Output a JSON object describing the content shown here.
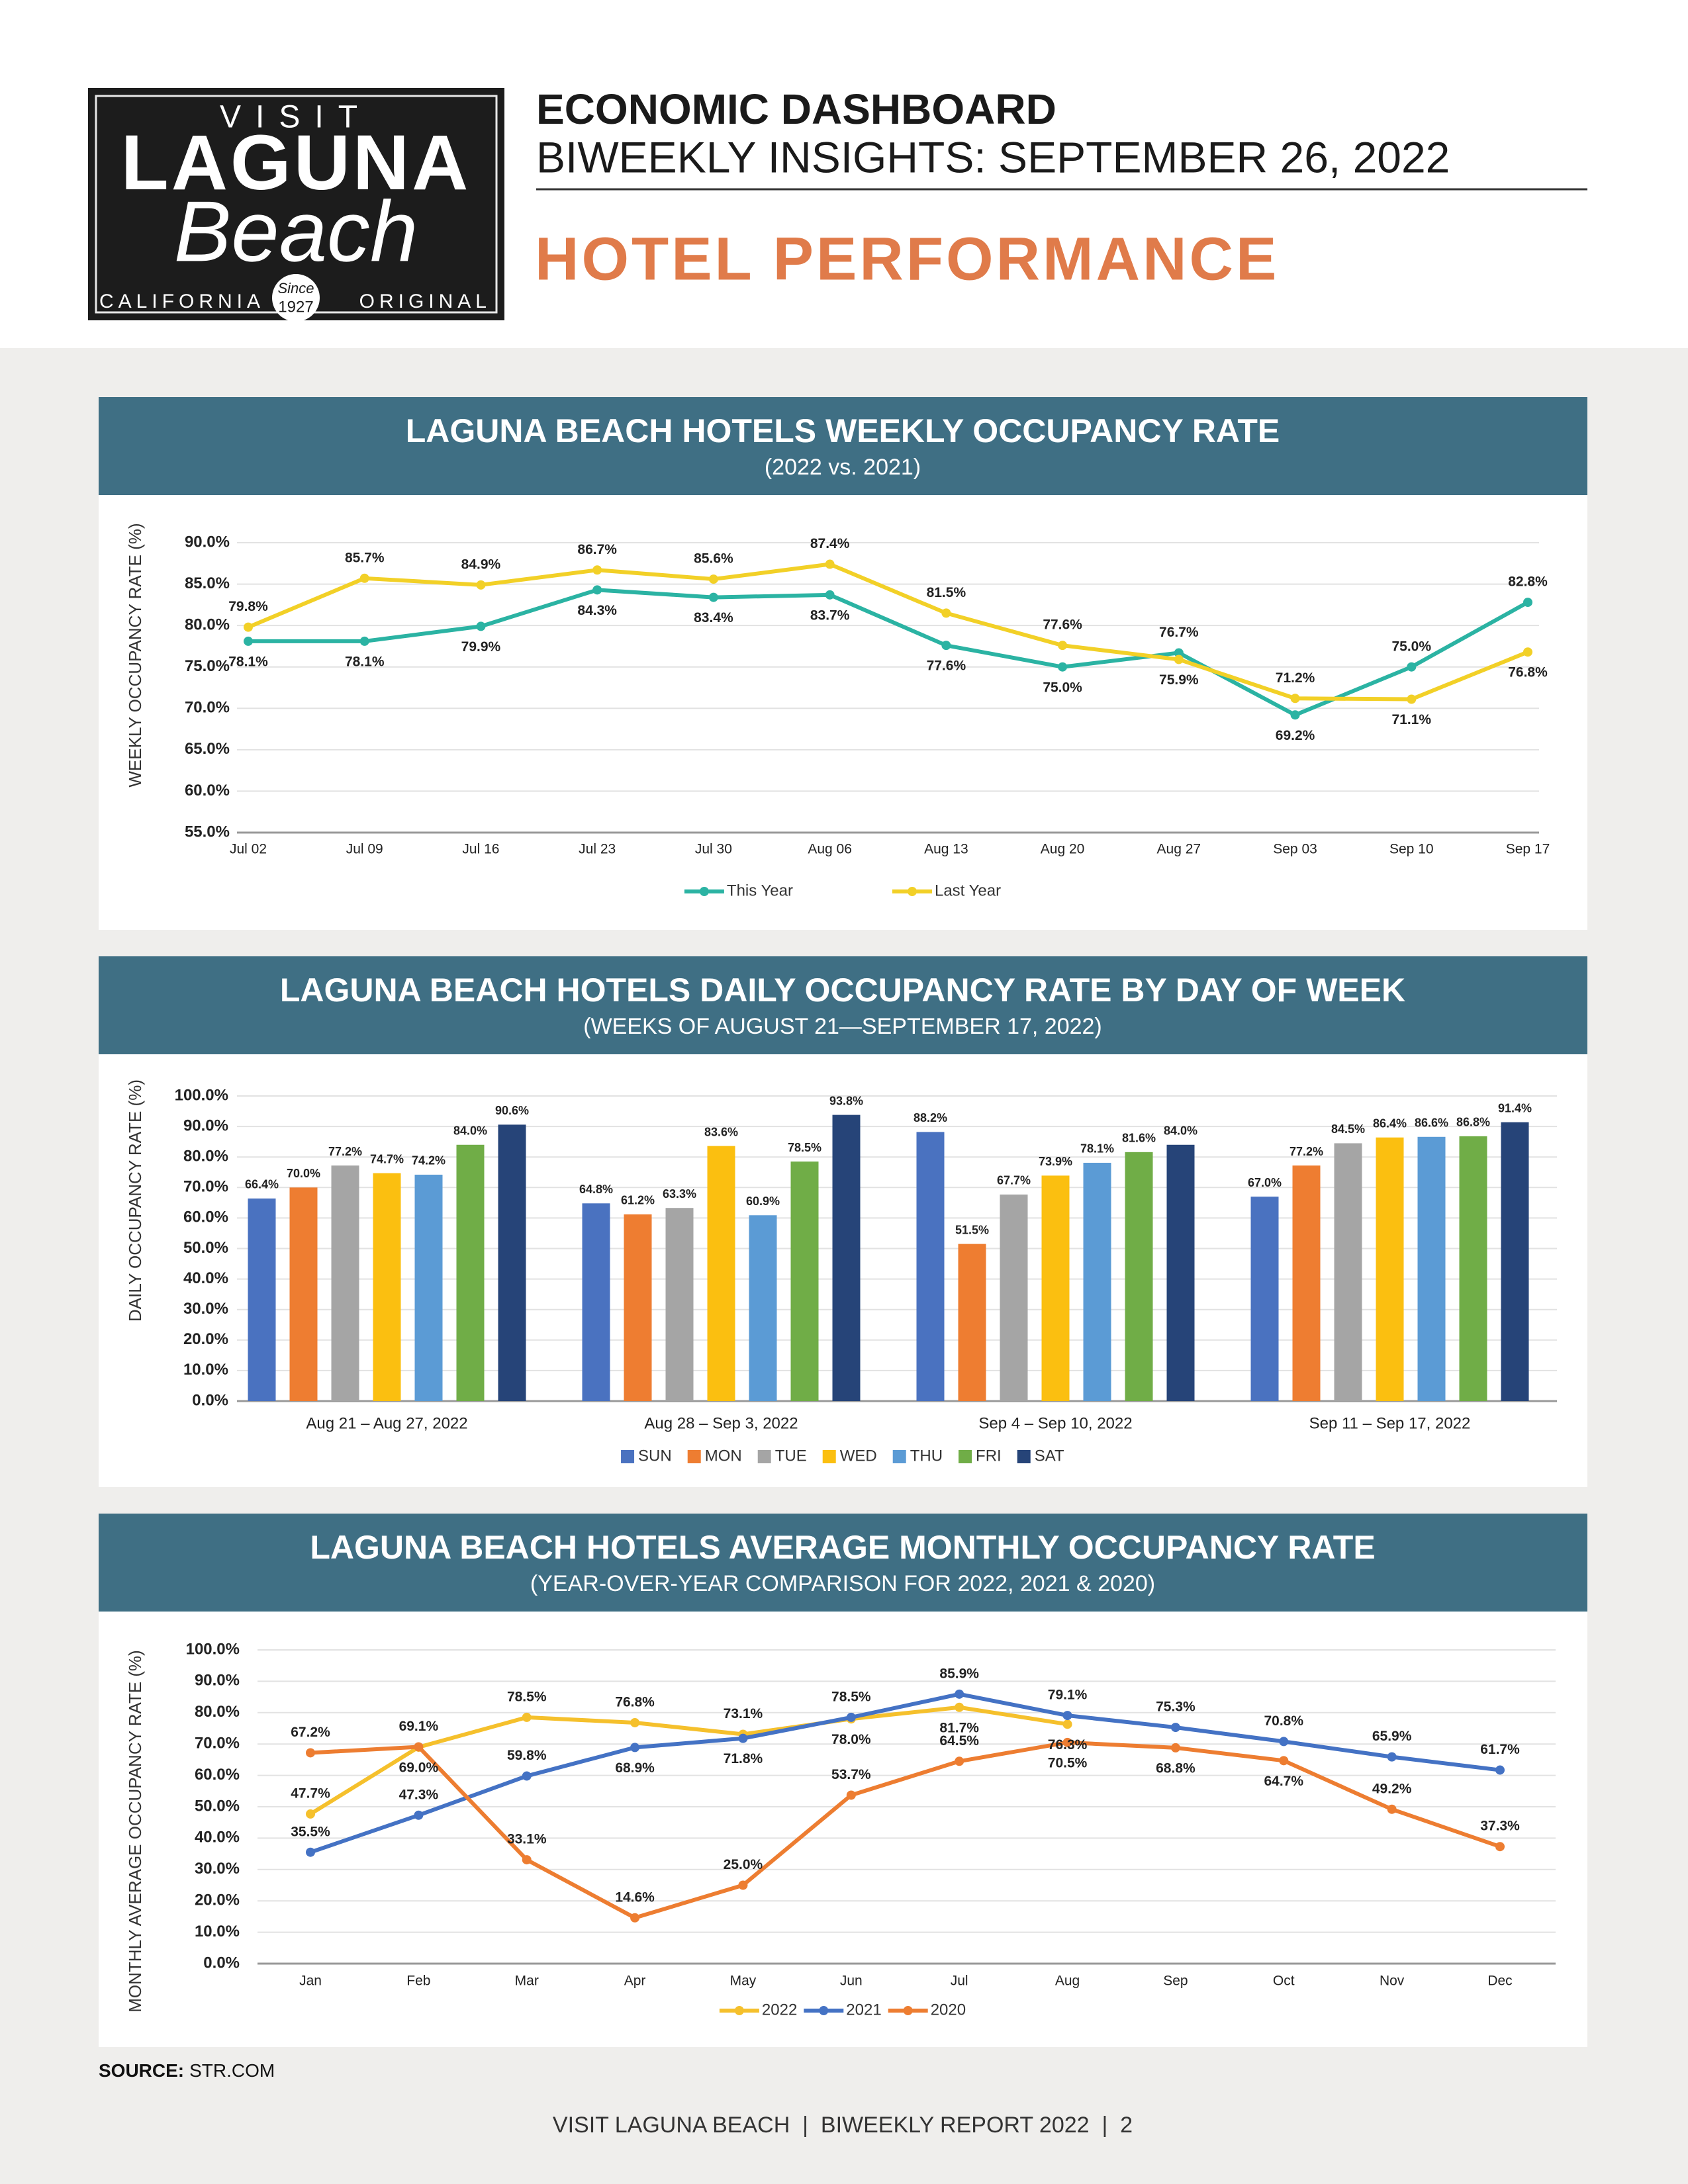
{
  "header": {
    "logo": {
      "visit": "VISIT",
      "laguna": "LAGUNA",
      "beach": "Beach",
      "california": "CALIFORNIA",
      "original": "ORIGINAL",
      "since": "Since",
      "year": "1927"
    },
    "title": "ECONOMIC DASHBOARD",
    "subtitle": "BIWEEKLY INSIGHTS: SEPTEMBER 26, 2022",
    "section": "HOTEL PERFORMANCE"
  },
  "chart_data": [
    {
      "type": "line",
      "title": "LAGUNA BEACH HOTELS WEEKLY OCCUPANCY RATE",
      "subtitle": "(2022 vs. 2021)",
      "y_label": "WEEKLY OCCUPANCY RATE (%)",
      "categories": [
        "Jul 02",
        "Jul 09",
        "Jul 16",
        "Jul 23",
        "Jul 30",
        "Aug 06",
        "Aug 13",
        "Aug 20",
        "Aug 27",
        "Sep 03",
        "Sep 10",
        "Sep 17"
      ],
      "series": [
        {
          "name": "This Year",
          "color": "#2bb3a3",
          "values": [
            78.1,
            78.1,
            79.9,
            84.3,
            83.4,
            83.7,
            77.6,
            75.0,
            76.7,
            69.2,
            75.0,
            82.8
          ],
          "value_labels": [
            "78.1%",
            "78.1%",
            "79.9%",
            "84.3%",
            "83.4%",
            "83.7%",
            "77.6%",
            "75.0%",
            "76.7%",
            "69.2%",
            "75.0%",
            "82.8%"
          ]
        },
        {
          "name": "Last Year",
          "color": "#f2d027",
          "values": [
            79.8,
            85.7,
            84.9,
            86.7,
            85.6,
            87.4,
            81.5,
            77.6,
            75.9,
            71.2,
            71.1,
            76.8
          ],
          "value_labels": [
            "79.8%",
            "85.7%",
            "84.9%",
            "86.7%",
            "85.6%",
            "87.4%",
            "81.5%",
            "77.6%",
            "75.9%",
            "71.2%",
            "71.1%",
            "76.8%"
          ]
        }
      ],
      "ylim": [
        55,
        90
      ],
      "yticks": [
        {
          "value": 55,
          "label": "55.0%"
        },
        {
          "value": 60,
          "label": "60.0%"
        },
        {
          "value": 65,
          "label": "65.0%"
        },
        {
          "value": 70,
          "label": "70.0%"
        },
        {
          "value": 75,
          "label": "75.0%"
        },
        {
          "value": 80,
          "label": "80.0%"
        },
        {
          "value": 85,
          "label": "85.0%"
        },
        {
          "value": 90,
          "label": "90.0%"
        }
      ],
      "grid": true,
      "legend": "bottom"
    },
    {
      "type": "bar",
      "title": "LAGUNA BEACH HOTELS DAILY OCCUPANCY RATE BY DAY OF WEEK",
      "subtitle": "(WEEKS OF AUGUST 21—SEPTEMBER 17, 2022)",
      "y_label": "DAILY OCCUPANCY RATE (%)",
      "categories": [
        "Aug 21 – Aug 27, 2022",
        "Aug 28 – Sep 3, 2022",
        "Sep 4 – Sep 10, 2022",
        "Sep 11 – Sep 17, 2022"
      ],
      "series": [
        {
          "name": "SUN",
          "color": "#4a72c0",
          "values": [
            66.4,
            64.8,
            88.2,
            67.0
          ],
          "value_labels": [
            "66.4%",
            "64.8%",
            "88.2%",
            "67.0%"
          ]
        },
        {
          "name": "MON",
          "color": "#ee7d31",
          "values": [
            70.0,
            61.2,
            51.5,
            77.2
          ],
          "value_labels": [
            "70.0%",
            "61.2%",
            "51.5%",
            "77.2%"
          ]
        },
        {
          "name": "TUE",
          "color": "#a5a5a5",
          "values": [
            77.2,
            63.3,
            67.7,
            84.5
          ],
          "value_labels": [
            "77.2%",
            "63.3%",
            "67.7%",
            "84.5%"
          ]
        },
        {
          "name": "WED",
          "color": "#fbbf10",
          "values": [
            74.7,
            83.6,
            73.9,
            86.4
          ],
          "value_labels": [
            "74.7%",
            "83.6%",
            "73.9%",
            "86.4%"
          ]
        },
        {
          "name": "THU",
          "color": "#5b9bd5",
          "values": [
            74.2,
            60.9,
            78.1,
            86.6
          ],
          "value_labels": [
            "74.2%",
            "60.9%",
            "78.1%",
            "86.6%"
          ]
        },
        {
          "name": "FRI",
          "color": "#70ad47",
          "values": [
            84.0,
            78.5,
            81.6,
            86.8
          ],
          "value_labels": [
            "84.0%",
            "78.5%",
            "81.6%",
            "86.8%"
          ]
        },
        {
          "name": "SAT",
          "color": "#264478",
          "values": [
            90.6,
            93.8,
            84.0,
            91.4
          ],
          "value_labels": [
            "90.6%",
            "93.8%",
            "84.0%",
            "91.4%"
          ]
        }
      ],
      "ylim": [
        0,
        100
      ],
      "yticks": [
        {
          "value": 0,
          "label": "0.0%"
        },
        {
          "value": 10,
          "label": "10.0%"
        },
        {
          "value": 20,
          "label": "20.0%"
        },
        {
          "value": 30,
          "label": "30.0%"
        },
        {
          "value": 40,
          "label": "40.0%"
        },
        {
          "value": 50,
          "label": "50.0%"
        },
        {
          "value": 60,
          "label": "60.0%"
        },
        {
          "value": 70,
          "label": "70.0%"
        },
        {
          "value": 80,
          "label": "80.0%"
        },
        {
          "value": 90,
          "label": "90.0%"
        },
        {
          "value": 100,
          "label": "100.0%"
        }
      ],
      "grid": true,
      "legend": "bottom"
    },
    {
      "type": "line",
      "title": "LAGUNA BEACH HOTELS AVERAGE MONTHLY OCCUPANCY RATE",
      "subtitle": "(YEAR-OVER-YEAR COMPARISON FOR 2022, 2021 & 2020)",
      "y_label": "MONTHLY AVERAGE OCCUPANCY RATE (%)",
      "categories": [
        "Jan",
        "Feb",
        "Mar",
        "Apr",
        "May",
        "Jun",
        "Jul",
        "Aug",
        "Sep",
        "Oct",
        "Nov",
        "Dec"
      ],
      "series": [
        {
          "name": "2022",
          "color": "#f5c02c",
          "values": [
            47.7,
            69.0,
            78.5,
            76.8,
            73.1,
            78.0,
            81.7,
            76.3,
            null,
            null,
            null,
            null
          ],
          "value_labels": [
            "47.7%",
            "69.0%",
            "78.5%",
            "76.8%",
            "73.1%",
            "78.0%",
            "81.7%",
            "76.3%",
            null,
            null,
            null,
            null
          ]
        },
        {
          "name": "2021",
          "color": "#4472c4",
          "values": [
            35.5,
            47.3,
            59.8,
            68.9,
            71.8,
            78.5,
            85.9,
            79.1,
            75.3,
            70.8,
            65.9,
            61.7
          ],
          "value_labels": [
            "35.5%",
            "47.3%",
            "59.8%",
            "68.9%",
            "71.8%",
            "78.5%",
            "85.9%",
            "79.1%",
            "75.3%",
            "70.8%",
            "65.9%",
            "61.7%"
          ]
        },
        {
          "name": "2020",
          "color": "#ed7d31",
          "values": [
            67.2,
            69.1,
            33.1,
            14.6,
            25.0,
            53.7,
            64.5,
            70.5,
            68.8,
            64.7,
            49.2,
            37.3
          ],
          "value_labels": [
            "67.2%",
            "69.1%",
            "33.1%",
            "14.6%",
            "25.0%",
            "53.7%",
            "64.5%",
            "70.5%",
            "68.8%",
            "64.7%",
            "49.2%",
            "37.3%"
          ]
        }
      ],
      "ylim": [
        0,
        100
      ],
      "yticks": [
        {
          "value": 0,
          "label": "0.0%"
        },
        {
          "value": 10,
          "label": "10.0%"
        },
        {
          "value": 20,
          "label": "20.0%"
        },
        {
          "value": 30,
          "label": "30.0%"
        },
        {
          "value": 40,
          "label": "40.0%"
        },
        {
          "value": 50,
          "label": "50.0%"
        },
        {
          "value": 60,
          "label": "60.0%"
        },
        {
          "value": 70,
          "label": "70.0%"
        },
        {
          "value": 80,
          "label": "80.0%"
        },
        {
          "value": 90,
          "label": "90.0%"
        },
        {
          "value": 100,
          "label": "100.0%"
        }
      ],
      "grid": true,
      "legend": "bottom"
    }
  ],
  "source": {
    "label": "SOURCE:",
    "text": "STR.COM"
  },
  "footer": "VISIT LAGUNA BEACH  |  BIWEEKLY REPORT 2022  |  2"
}
